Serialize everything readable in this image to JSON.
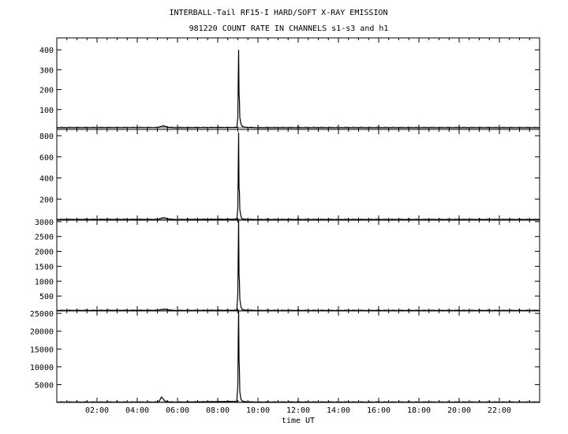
{
  "chart_data": {
    "type": "line",
    "title": "INTERBALL-Tail RF15-I HARD/SOFT X-RAY EMISSION",
    "subtitle": "981220  COUNT RATE IN CHANNELS s1-s3 and h1",
    "xlabel": "time UT",
    "xlim": [
      0,
      24
    ],
    "x_ticks": [
      2,
      4,
      6,
      8,
      10,
      12,
      14,
      16,
      18,
      20,
      22
    ],
    "x_tick_labels": [
      "02:00",
      "04:00",
      "06:00",
      "08:00",
      "10:00",
      "12:00",
      "14:00",
      "16:00",
      "18:00",
      "20:00",
      "22:00"
    ],
    "panels": [
      {
        "ylim": [
          0,
          460
        ],
        "yticks": [
          100,
          200,
          300,
          400
        ],
        "baseline": 8,
        "x": [
          0,
          5.0,
          5.15,
          5.3,
          5.45,
          5.6,
          5.8,
          8.95,
          9.0,
          9.02,
          9.04,
          9.06,
          9.08,
          9.1,
          9.15,
          9.2,
          9.3,
          9.5,
          10.0,
          24
        ],
        "y": [
          8,
          9,
          14,
          18,
          14,
          10,
          8,
          10,
          60,
          250,
          400,
          180,
          150,
          60,
          30,
          18,
          12,
          10,
          8,
          8
        ]
      },
      {
        "ylim": [
          0,
          860
        ],
        "yticks": [
          200,
          400,
          600,
          800
        ],
        "baseline": 5,
        "x": [
          0,
          5.0,
          5.15,
          5.3,
          5.45,
          5.6,
          5.8,
          8.95,
          9.0,
          9.02,
          9.04,
          9.06,
          9.08,
          9.1,
          9.15,
          9.2,
          9.3,
          9.5,
          10.0,
          24
        ],
        "y": [
          5,
          6,
          15,
          25,
          18,
          10,
          5,
          8,
          120,
          500,
          830,
          300,
          280,
          100,
          40,
          15,
          8,
          6,
          5,
          5
        ]
      },
      {
        "ylim": [
          0,
          3050
        ],
        "yticks": [
          500,
          1000,
          1500,
          2000,
          2500,
          3000
        ],
        "baseline": 10,
        "x": [
          0,
          5.0,
          5.2,
          5.4,
          5.6,
          5.8,
          8.95,
          9.0,
          9.02,
          9.04,
          9.06,
          9.08,
          9.1,
          9.15,
          9.2,
          9.3,
          9.5,
          10.0,
          24
        ],
        "y": [
          10,
          15,
          50,
          60,
          30,
          10,
          20,
          600,
          2000,
          3050,
          1200,
          1000,
          400,
          150,
          60,
          30,
          20,
          10,
          10
        ]
      },
      {
        "ylim": [
          0,
          25700
        ],
        "yticks": [
          5000,
          10000,
          15000,
          20000,
          25000
        ],
        "baseline": 50,
        "x": [
          0,
          5.0,
          5.1,
          5.2,
          5.3,
          5.4,
          5.6,
          5.8,
          8.95,
          9.0,
          9.02,
          9.04,
          9.06,
          9.08,
          9.1,
          9.15,
          9.2,
          9.3,
          9.5,
          10.0,
          24
        ],
        "y": [
          50,
          80,
          400,
          1500,
          900,
          300,
          150,
          60,
          300,
          5000,
          18000,
          25700,
          12000,
          9000,
          3000,
          1000,
          500,
          250,
          150,
          80,
          50
        ]
      }
    ]
  }
}
